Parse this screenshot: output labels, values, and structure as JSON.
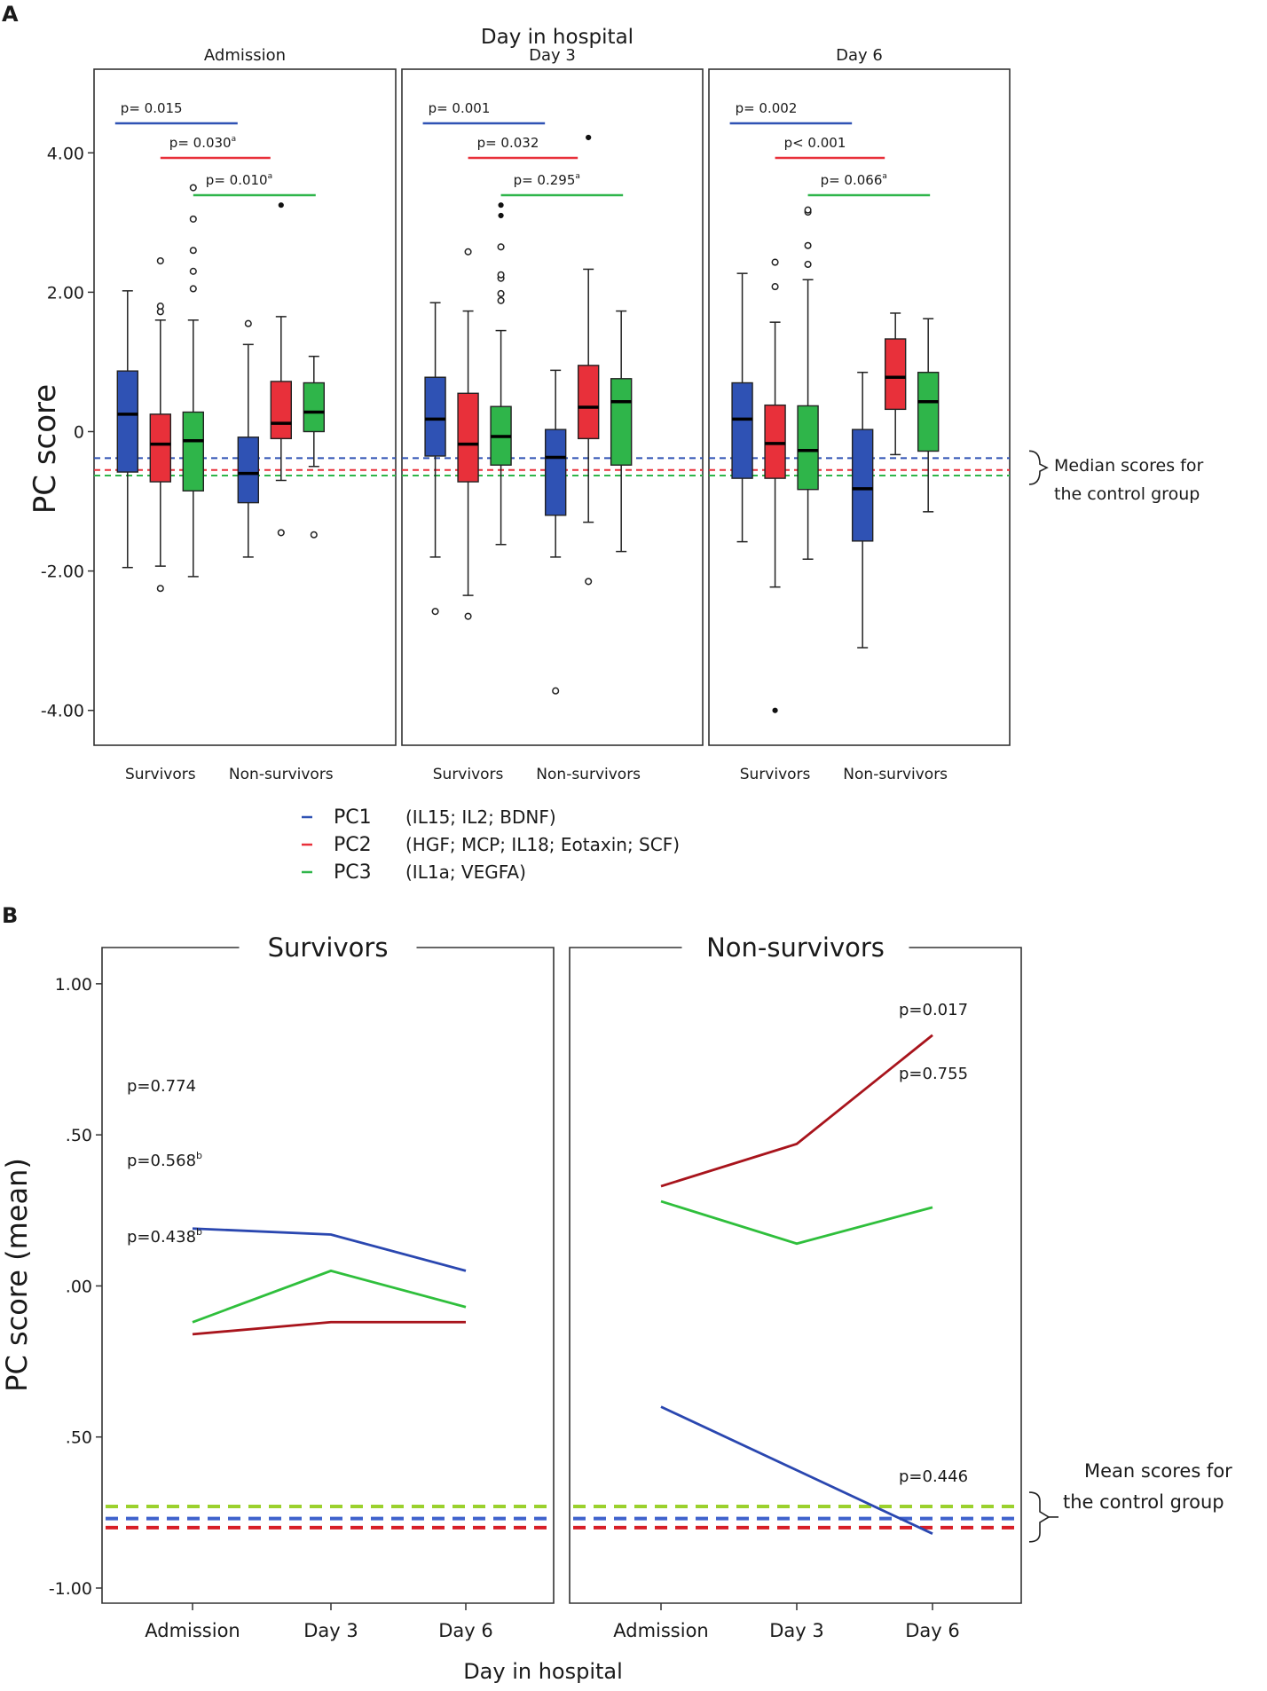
{
  "chart_data": [
    {
      "panel": "A",
      "type": "box",
      "title": "Day in hospital",
      "ylabel": "PC score",
      "ylim": [
        -4.5,
        5.2
      ],
      "yticks": [
        {
          "value": 4,
          "label": "4.00"
        },
        {
          "value": 2,
          "label": "2.00"
        },
        {
          "value": 0,
          "label": "0"
        },
        {
          "value": -2,
          "label": "-2.00"
        },
        {
          "value": -4,
          "label": "-4.00"
        }
      ],
      "groups": [
        "Survivors",
        "Non-survivors"
      ],
      "series_colors": {
        "PC1": "#2f52b4",
        "PC2": "#e8303a",
        "PC3": "#2fb54a"
      },
      "control_medians": {
        "PC1": -0.38,
        "PC2": -0.55,
        "PC3": -0.63
      },
      "control_annotation": [
        "Median scores for",
        "the control group"
      ],
      "panels": [
        {
          "label": "Admission",
          "pvalues": [
            {
              "series": "PC1",
              "text": "p= 0.015",
              "sup": "",
              "from": "Survivors",
              "to": "Non-survivors"
            },
            {
              "series": "PC2",
              "text": "p= 0.030",
              "sup": "a",
              "from": "Survivors",
              "to": "Non-survivors"
            },
            {
              "series": "PC3",
              "text": "p= 0.010",
              "sup": "a",
              "from": "Survivors",
              "to": "Non-survivors"
            }
          ],
          "boxes": [
            {
              "group": "Survivors",
              "series": "PC1",
              "whislo": -1.95,
              "q1": -0.58,
              "med": 0.25,
              "q3": 0.87,
              "whishi": 2.02,
              "outliers_open": [],
              "outliers_filled": []
            },
            {
              "group": "Survivors",
              "series": "PC2",
              "whislo": -1.93,
              "q1": -0.72,
              "med": -0.18,
              "q3": 0.25,
              "whishi": 1.6,
              "outliers_open": [
                -2.25,
                1.72,
                1.8,
                2.45
              ],
              "outliers_filled": []
            },
            {
              "group": "Survivors",
              "series": "PC3",
              "whislo": -2.08,
              "q1": -0.85,
              "med": -0.13,
              "q3": 0.28,
              "whishi": 1.6,
              "outliers_open": [
                2.05,
                2.3,
                2.6,
                3.05,
                3.5
              ],
              "outliers_filled": []
            },
            {
              "group": "Non-survivors",
              "series": "PC1",
              "whislo": -1.8,
              "q1": -1.02,
              "med": -0.6,
              "q3": -0.08,
              "whishi": 1.25,
              "outliers_open": [
                1.55
              ],
              "outliers_filled": []
            },
            {
              "group": "Non-survivors",
              "series": "PC2",
              "whislo": -0.7,
              "q1": -0.1,
              "med": 0.12,
              "q3": 0.72,
              "whishi": 1.65,
              "outliers_open": [
                -1.45
              ],
              "outliers_filled": [
                3.25
              ]
            },
            {
              "group": "Non-survivors",
              "series": "PC3",
              "whislo": -0.5,
              "q1": 0.0,
              "med": 0.28,
              "q3": 0.7,
              "whishi": 1.08,
              "outliers_open": [
                -1.48
              ],
              "outliers_filled": []
            }
          ]
        },
        {
          "label": "Day 3",
          "pvalues": [
            {
              "series": "PC1",
              "text": "p= 0.001",
              "sup": "",
              "from": "Survivors",
              "to": "Non-survivors"
            },
            {
              "series": "PC2",
              "text": "p= 0.032",
              "sup": "",
              "from": "Survivors",
              "to": "Non-survivors"
            },
            {
              "series": "PC3",
              "text": "p= 0.295",
              "sup": "a",
              "from": "Survivors",
              "to": "Non-survivors"
            }
          ],
          "boxes": [
            {
              "group": "Survivors",
              "series": "PC1",
              "whislo": -1.8,
              "q1": -0.35,
              "med": 0.18,
              "q3": 0.78,
              "whishi": 1.85,
              "outliers_open": [
                -2.58
              ],
              "outliers_filled": []
            },
            {
              "group": "Survivors",
              "series": "PC2",
              "whislo": -2.35,
              "q1": -0.72,
              "med": -0.18,
              "q3": 0.55,
              "whishi": 1.73,
              "outliers_open": [
                -2.65,
                2.58
              ],
              "outliers_filled": []
            },
            {
              "group": "Survivors",
              "series": "PC3",
              "whislo": -1.62,
              "q1": -0.48,
              "med": -0.07,
              "q3": 0.36,
              "whishi": 1.45,
              "outliers_open": [
                1.88,
                1.98,
                2.2,
                2.25,
                2.65
              ],
              "outliers_filled": [
                3.1,
                3.25
              ]
            },
            {
              "group": "Non-survivors",
              "series": "PC1",
              "whislo": -1.8,
              "q1": -1.2,
              "med": -0.37,
              "q3": 0.03,
              "whishi": 0.88,
              "outliers_open": [
                -3.72
              ],
              "outliers_filled": []
            },
            {
              "group": "Non-survivors",
              "series": "PC2",
              "whislo": -1.3,
              "q1": -0.1,
              "med": 0.35,
              "q3": 0.95,
              "whishi": 2.33,
              "outliers_open": [
                -2.15
              ],
              "outliers_filled": [
                4.22
              ]
            },
            {
              "group": "Non-survivors",
              "series": "PC3",
              "whislo": -1.72,
              "q1": -0.48,
              "med": 0.43,
              "q3": 0.76,
              "whishi": 1.73,
              "outliers_open": [],
              "outliers_filled": []
            }
          ]
        },
        {
          "label": "Day 6",
          "pvalues": [
            {
              "series": "PC1",
              "text": "p= 0.002",
              "sup": "",
              "from": "Survivors",
              "to": "Non-survivors"
            },
            {
              "series": "PC2",
              "text": "p< 0.001",
              "sup": "",
              "from": "Survivors",
              "to": "Non-survivors"
            },
            {
              "series": "PC3",
              "text": "p= 0.066",
              "sup": "a",
              "from": "Survivors",
              "to": "Non-survivors"
            }
          ],
          "boxes": [
            {
              "group": "Survivors",
              "series": "PC1",
              "whislo": -1.58,
              "q1": -0.67,
              "med": 0.18,
              "q3": 0.7,
              "whishi": 2.27,
              "outliers_open": [],
              "outliers_filled": []
            },
            {
              "group": "Survivors",
              "series": "PC2",
              "whislo": -2.23,
              "q1": -0.67,
              "med": -0.17,
              "q3": 0.38,
              "whishi": 1.57,
              "outliers_open": [
                2.08,
                2.43
              ],
              "outliers_filled": [
                -4.0
              ]
            },
            {
              "group": "Survivors",
              "series": "PC3",
              "whislo": -1.83,
              "q1": -0.83,
              "med": -0.27,
              "q3": 0.37,
              "whishi": 2.18,
              "outliers_open": [
                2.4,
                2.67,
                3.15,
                3.18
              ],
              "outliers_filled": []
            },
            {
              "group": "Non-survivors",
              "series": "PC1",
              "whislo": -3.1,
              "q1": -1.57,
              "med": -0.82,
              "q3": 0.03,
              "whishi": 0.85,
              "outliers_open": [],
              "outliers_filled": []
            },
            {
              "group": "Non-survivors",
              "series": "PC2",
              "whislo": -0.33,
              "q1": 0.32,
              "med": 0.78,
              "q3": 1.33,
              "whishi": 1.7,
              "outliers_open": [],
              "outliers_filled": []
            },
            {
              "group": "Non-survivors",
              "series": "PC3",
              "whislo": -1.15,
              "q1": -0.28,
              "med": 0.43,
              "q3": 0.85,
              "whishi": 1.62,
              "outliers_open": [],
              "outliers_filled": []
            }
          ]
        }
      ],
      "legend": [
        {
          "series": "PC1",
          "label": "PC1",
          "detail": "(IL15; IL2; BDNF)"
        },
        {
          "series": "PC2",
          "label": "PC2",
          "detail": "(HGF; MCP; IL18; Eotaxin; SCF)"
        },
        {
          "series": "PC3",
          "label": "PC3",
          "detail": "(IL1a; VEGFA)"
        }
      ]
    },
    {
      "panel": "B",
      "type": "line",
      "xlabel": "Day in hospital",
      "ylabel": "PC score (mean)",
      "ylim": [
        -1.05,
        1.12
      ],
      "yticks": [
        {
          "value": 1.0,
          "label": "1.00"
        },
        {
          "value": 0.5,
          "label": ".50"
        },
        {
          "value": 0.0,
          "label": ".00"
        },
        {
          "value": -0.5,
          "label": ".50"
        },
        {
          "value": -1.0,
          "label": "-1.00"
        }
      ],
      "categories": [
        "Admission",
        "Day 3",
        "Day 6"
      ],
      "series_colors": {
        "PC1": "#2a47b0",
        "PC2": "#a8141c",
        "PC3": "#2fbf3c"
      },
      "control_colors": {
        "PC1": "#3f62cc",
        "PC2": "#d81e26",
        "PC3": "#9bd12d"
      },
      "control_means": {
        "PC1": -0.77,
        "PC2": -0.8,
        "PC3": -0.73
      },
      "control_annotation": [
        "Mean scores for",
        "the control group"
      ],
      "panels": [
        {
          "label": "Survivors",
          "series": [
            {
              "name": "PC1",
              "values": [
                0.19,
                0.17,
                0.05
              ]
            },
            {
              "name": "PC2",
              "values": [
                -0.16,
                -0.12,
                -0.12
              ]
            },
            {
              "name": "PC3",
              "values": [
                -0.12,
                0.05,
                -0.07
              ]
            }
          ],
          "pvalues": [
            {
              "series": "PC1",
              "text": "p=0.774",
              "sup": ""
            },
            {
              "series": "PC3",
              "text": "p=0.568",
              "sup": "b"
            },
            {
              "series": "PC2",
              "text": "p=0.438",
              "sup": "b"
            }
          ]
        },
        {
          "label": "Non-survivors",
          "series": [
            {
              "name": "PC1",
              "values": [
                -0.4,
                -0.61,
                -0.82
              ]
            },
            {
              "name": "PC2",
              "values": [
                0.33,
                0.47,
                0.83
              ]
            },
            {
              "name": "PC3",
              "values": [
                0.28,
                0.14,
                0.26
              ]
            }
          ],
          "pvalues": [
            {
              "series": "PC2",
              "text": "p=0.017",
              "sup": ""
            },
            {
              "series": "PC3",
              "text": "p=0.755",
              "sup": ""
            },
            {
              "series": "PC1",
              "text": "p=0.446",
              "sup": ""
            }
          ]
        }
      ]
    }
  ]
}
